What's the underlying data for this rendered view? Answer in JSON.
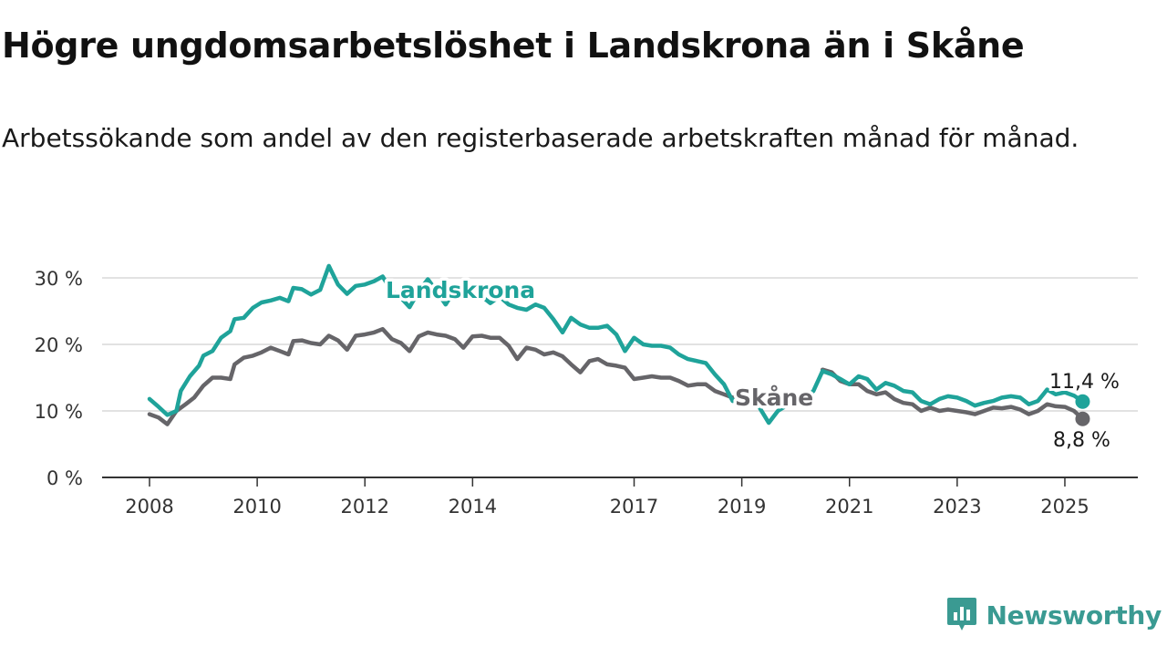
{
  "title": "Högre ungdomsarbetslöshet i Landskrona än i Skåne",
  "subtitle": "Arbetssökande som andel av den registerbaserade arbetskraften månad för månad.",
  "brand": {
    "name": "Newsworthy",
    "color": "#3a9a92"
  },
  "chart_data": {
    "type": "line",
    "title": "Högre ungdomsarbetslöshet i Landskrona än i Skåne",
    "subtitle": "Arbetssökande som andel av den registerbaserade arbetskraften månad för månad.",
    "xlabel": "",
    "ylabel": "",
    "xlim": [
      2008.0,
      2025.5
    ],
    "ylim": [
      0,
      32
    ],
    "grid": true,
    "legend": "inline labels",
    "x_ticks": [
      2008,
      2010,
      2012,
      2014,
      2017,
      2019,
      2021,
      2023,
      2025
    ],
    "x_tick_labels": [
      "2008",
      "2010",
      "2012",
      "2014",
      "2017",
      "2019",
      "2021",
      "2023",
      "2025"
    ],
    "y_ticks": [
      0,
      10,
      20,
      30
    ],
    "y_tick_labels": [
      "0 %",
      "10 %",
      "20 %",
      "30 %"
    ],
    "series": [
      {
        "name": "Landskrona",
        "color": "#1fa39a",
        "end_label": "11,4 %",
        "points": [
          [
            2008.0,
            11.8
          ],
          [
            2008.17,
            10.6
          ],
          [
            2008.33,
            9.4
          ],
          [
            2008.5,
            10.0
          ],
          [
            2008.58,
            13.0
          ],
          [
            2008.75,
            15.2
          ],
          [
            2008.92,
            16.8
          ],
          [
            2009.0,
            18.3
          ],
          [
            2009.17,
            19.0
          ],
          [
            2009.33,
            21.0
          ],
          [
            2009.5,
            22.0
          ],
          [
            2009.58,
            23.8
          ],
          [
            2009.75,
            24.0
          ],
          [
            2009.92,
            25.5
          ],
          [
            2010.08,
            26.3
          ],
          [
            2010.25,
            26.6
          ],
          [
            2010.42,
            27.0
          ],
          [
            2010.58,
            26.5
          ],
          [
            2010.67,
            28.5
          ],
          [
            2010.83,
            28.3
          ],
          [
            2011.0,
            27.5
          ],
          [
            2011.17,
            28.2
          ],
          [
            2011.33,
            31.8
          ],
          [
            2011.5,
            29.0
          ],
          [
            2011.67,
            27.6
          ],
          [
            2011.83,
            28.8
          ],
          [
            2012.0,
            29.0
          ],
          [
            2012.17,
            29.5
          ],
          [
            2012.33,
            30.2
          ],
          [
            2012.5,
            28.0
          ],
          [
            2012.67,
            27.0
          ],
          [
            2012.83,
            25.6
          ],
          [
            2013.0,
            28.0
          ],
          [
            2013.17,
            29.8
          ],
          [
            2013.33,
            28.0
          ],
          [
            2013.5,
            26.0
          ],
          [
            2013.67,
            28.2
          ],
          [
            2013.83,
            28.5
          ],
          [
            2014.0,
            27.8
          ],
          [
            2014.17,
            27.2
          ],
          [
            2014.33,
            26.2
          ],
          [
            2014.5,
            27.2
          ],
          [
            2014.67,
            26.0
          ],
          [
            2014.83,
            25.5
          ],
          [
            2015.0,
            25.2
          ],
          [
            2015.17,
            26.0
          ],
          [
            2015.33,
            25.5
          ],
          [
            2015.5,
            23.8
          ],
          [
            2015.67,
            21.8
          ],
          [
            2015.83,
            24.0
          ],
          [
            2016.0,
            23.0
          ],
          [
            2016.17,
            22.5
          ],
          [
            2016.33,
            22.5
          ],
          [
            2016.5,
            22.8
          ],
          [
            2016.67,
            21.5
          ],
          [
            2016.83,
            19.0
          ],
          [
            2017.0,
            21.0
          ],
          [
            2017.17,
            20.0
          ],
          [
            2017.33,
            19.8
          ],
          [
            2017.5,
            19.8
          ],
          [
            2017.67,
            19.5
          ],
          [
            2017.83,
            18.5
          ],
          [
            2018.0,
            17.8
          ],
          [
            2018.17,
            17.5
          ],
          [
            2018.33,
            17.2
          ],
          [
            2018.5,
            15.5
          ],
          [
            2018.67,
            14.0
          ],
          [
            2018.83,
            11.5
          ],
          [
            2019.0,
            12.2
          ],
          [
            2019.17,
            12.0
          ],
          [
            2019.33,
            10.5
          ],
          [
            2019.5,
            8.2
          ],
          [
            2019.67,
            10.0
          ],
          [
            2019.83,
            10.8
          ],
          [
            2020.0,
            11.5
          ],
          [
            2020.17,
            11.8
          ],
          [
            2020.33,
            13.0
          ],
          [
            2020.5,
            16.0
          ],
          [
            2020.67,
            15.5
          ],
          [
            2020.83,
            14.8
          ],
          [
            2021.0,
            14.0
          ],
          [
            2021.17,
            15.2
          ],
          [
            2021.33,
            14.8
          ],
          [
            2021.5,
            13.2
          ],
          [
            2021.67,
            14.2
          ],
          [
            2021.83,
            13.8
          ],
          [
            2022.0,
            13.0
          ],
          [
            2022.17,
            12.8
          ],
          [
            2022.33,
            11.5
          ],
          [
            2022.5,
            11.0
          ],
          [
            2022.67,
            11.8
          ],
          [
            2022.83,
            12.2
          ],
          [
            2023.0,
            12.0
          ],
          [
            2023.17,
            11.5
          ],
          [
            2023.33,
            10.8
          ],
          [
            2023.5,
            11.2
          ],
          [
            2023.67,
            11.5
          ],
          [
            2023.83,
            12.0
          ],
          [
            2024.0,
            12.2
          ],
          [
            2024.17,
            12.0
          ],
          [
            2024.33,
            11.0
          ],
          [
            2024.5,
            11.5
          ],
          [
            2024.67,
            13.2
          ],
          [
            2024.83,
            12.5
          ],
          [
            2025.0,
            12.8
          ],
          [
            2025.17,
            12.3
          ],
          [
            2025.33,
            11.4
          ]
        ]
      },
      {
        "name": "Skåne",
        "color": "#666569",
        "end_label": "8,8 %",
        "points": [
          [
            2008.0,
            9.5
          ],
          [
            2008.17,
            9.0
          ],
          [
            2008.33,
            8.0
          ],
          [
            2008.5,
            10.0
          ],
          [
            2008.67,
            11.0
          ],
          [
            2008.83,
            12.0
          ],
          [
            2009.0,
            13.8
          ],
          [
            2009.17,
            15.0
          ],
          [
            2009.33,
            15.0
          ],
          [
            2009.5,
            14.8
          ],
          [
            2009.58,
            17.0
          ],
          [
            2009.75,
            18.0
          ],
          [
            2009.92,
            18.3
          ],
          [
            2010.08,
            18.8
          ],
          [
            2010.25,
            19.5
          ],
          [
            2010.42,
            19.0
          ],
          [
            2010.58,
            18.5
          ],
          [
            2010.67,
            20.5
          ],
          [
            2010.83,
            20.6
          ],
          [
            2011.0,
            20.2
          ],
          [
            2011.17,
            20.0
          ],
          [
            2011.33,
            21.3
          ],
          [
            2011.5,
            20.6
          ],
          [
            2011.67,
            19.2
          ],
          [
            2011.83,
            21.3
          ],
          [
            2012.0,
            21.5
          ],
          [
            2012.17,
            21.8
          ],
          [
            2012.33,
            22.3
          ],
          [
            2012.5,
            20.8
          ],
          [
            2012.67,
            20.2
          ],
          [
            2012.83,
            19.0
          ],
          [
            2013.0,
            21.2
          ],
          [
            2013.17,
            21.8
          ],
          [
            2013.33,
            21.5
          ],
          [
            2013.5,
            21.3
          ],
          [
            2013.67,
            20.8
          ],
          [
            2013.83,
            19.5
          ],
          [
            2014.0,
            21.2
          ],
          [
            2014.17,
            21.3
          ],
          [
            2014.33,
            21.0
          ],
          [
            2014.5,
            21.0
          ],
          [
            2014.67,
            19.8
          ],
          [
            2014.83,
            17.8
          ],
          [
            2015.0,
            19.5
          ],
          [
            2015.17,
            19.2
          ],
          [
            2015.33,
            18.5
          ],
          [
            2015.5,
            18.8
          ],
          [
            2015.67,
            18.2
          ],
          [
            2015.83,
            17.0
          ],
          [
            2016.0,
            15.8
          ],
          [
            2016.17,
            17.5
          ],
          [
            2016.33,
            17.8
          ],
          [
            2016.5,
            17.0
          ],
          [
            2016.67,
            16.8
          ],
          [
            2016.83,
            16.5
          ],
          [
            2017.0,
            14.8
          ],
          [
            2017.17,
            15.0
          ],
          [
            2017.33,
            15.2
          ],
          [
            2017.5,
            15.0
          ],
          [
            2017.67,
            15.0
          ],
          [
            2017.83,
            14.5
          ],
          [
            2018.0,
            13.8
          ],
          [
            2018.17,
            14.0
          ],
          [
            2018.33,
            14.0
          ],
          [
            2018.5,
            13.0
          ],
          [
            2018.67,
            12.5
          ],
          [
            2018.83,
            12.0
          ],
          [
            2019.0,
            12.2
          ],
          [
            2019.17,
            12.5
          ],
          [
            2020.5,
            16.2
          ],
          [
            2020.67,
            15.8
          ],
          [
            2020.83,
            14.5
          ],
          [
            2021.0,
            14.0
          ],
          [
            2021.17,
            14.0
          ],
          [
            2021.33,
            13.0
          ],
          [
            2021.5,
            12.5
          ],
          [
            2021.67,
            12.8
          ],
          [
            2021.83,
            11.8
          ],
          [
            2022.0,
            11.2
          ],
          [
            2022.17,
            11.0
          ],
          [
            2022.33,
            10.0
          ],
          [
            2022.5,
            10.5
          ],
          [
            2022.67,
            10.0
          ],
          [
            2022.83,
            10.2
          ],
          [
            2023.0,
            10.0
          ],
          [
            2023.17,
            9.8
          ],
          [
            2023.33,
            9.5
          ],
          [
            2023.5,
            10.0
          ],
          [
            2023.67,
            10.5
          ],
          [
            2023.83,
            10.4
          ],
          [
            2024.0,
            10.6
          ],
          [
            2024.17,
            10.2
          ],
          [
            2024.33,
            9.5
          ],
          [
            2024.5,
            10.0
          ],
          [
            2024.67,
            11.0
          ],
          [
            2024.83,
            10.7
          ],
          [
            2025.0,
            10.6
          ],
          [
            2025.17,
            10.0
          ],
          [
            2025.33,
            8.8
          ]
        ]
      }
    ]
  }
}
